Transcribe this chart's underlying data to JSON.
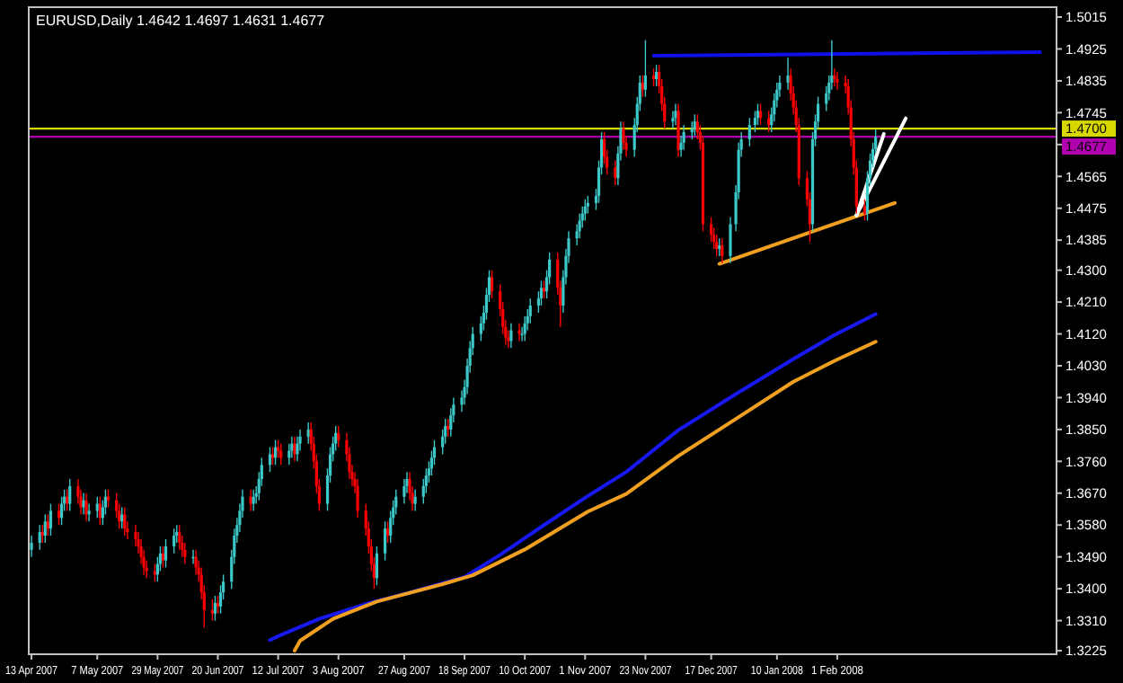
{
  "chart_data": {
    "type": "candlestick",
    "title": "EURUSD,Daily  1.4642 1.4697 1.4631 1.4677",
    "xlim": [
      "2007-04-12",
      "2008-04-21"
    ],
    "ylim": [
      1.3215,
      1.5043
    ],
    "xticks": [
      {
        "value": "2007-04-13",
        "label": "13 Apr 2007"
      },
      {
        "value": "2007-05-07",
        "label": "7 May 2007"
      },
      {
        "value": "2007-05-29",
        "label": "29 May 2007"
      },
      {
        "value": "2007-06-20",
        "label": "20 Jun 2007"
      },
      {
        "value": "2007-07-12",
        "label": "12 Jul 2007"
      },
      {
        "value": "2007-08-03",
        "label": "3 Aug 2007"
      },
      {
        "value": "2007-08-27",
        "label": "27 Aug 2007"
      },
      {
        "value": "2007-09-18",
        "label": "18 Sep 2007"
      },
      {
        "value": "2007-10-10",
        "label": "10 Oct 2007"
      },
      {
        "value": "2007-11-01",
        "label": "1 Nov 2007"
      },
      {
        "value": "2007-11-23",
        "label": "23 Nov 2007"
      },
      {
        "value": "2007-12-17",
        "label": "17 Dec 2007"
      },
      {
        "value": "2008-01-10",
        "label": "10 Jan 2008"
      },
      {
        "value": "2008-02-01",
        "label": "1 Feb 2008"
      }
    ],
    "yticks": [
      1.5015,
      1.4925,
      1.4835,
      1.4745,
      {
        "value": 1.4655,
        "label": null
      },
      1.4565,
      1.4475,
      1.4385,
      {
        "value": 1.43,
        "label": "1.4300"
      },
      {
        "value": 1.421,
        "label": "1.4210"
      },
      {
        "value": 1.412,
        "label": "1.4120"
      },
      {
        "value": 1.403,
        "label": "1.4030"
      },
      {
        "value": 1.394,
        "label": "1.3940"
      },
      {
        "value": 1.385,
        "label": "1.3850"
      },
      {
        "value": 1.376,
        "label": "1.3760"
      },
      {
        "value": 1.367,
        "label": "1.3670"
      },
      {
        "value": 1.358,
        "label": "1.3580"
      },
      {
        "value": 1.349,
        "label": "1.3490"
      },
      {
        "value": 1.34,
        "label": "1.3400"
      },
      {
        "value": 1.331,
        "label": "1.3310"
      },
      1.3225
    ],
    "ref_lines": [
      {
        "axis": "y",
        "value": 1.47,
        "label": "1.4700",
        "color": "#d8d800"
      },
      {
        "axis": "y",
        "value": 1.4677,
        "label": "1.4677",
        "color": "#b000b0"
      }
    ],
    "x": [
      "2007-04-13",
      "2007-04-16",
      "2007-04-17",
      "2007-04-18",
      "2007-04-19",
      "2007-04-20",
      "2007-04-23",
      "2007-04-24",
      "2007-04-25",
      "2007-04-26",
      "2007-04-27",
      "2007-04-30",
      "2007-05-01",
      "2007-05-02",
      "2007-05-03",
      "2007-05-04",
      "2007-05-07",
      "2007-05-08",
      "2007-05-09",
      "2007-05-10",
      "2007-05-11",
      "2007-05-14",
      "2007-05-15",
      "2007-05-16",
      "2007-05-17",
      "2007-05-18",
      "2007-05-21",
      "2007-05-22",
      "2007-05-23",
      "2007-05-24",
      "2007-05-25",
      "2007-05-28",
      "2007-05-29",
      "2007-05-30",
      "2007-05-31",
      "2007-06-01",
      "2007-06-04",
      "2007-06-05",
      "2007-06-06",
      "2007-06-07",
      "2007-06-08",
      "2007-06-11",
      "2007-06-12",
      "2007-06-13",
      "2007-06-14",
      "2007-06-15",
      "2007-06-18",
      "2007-06-19",
      "2007-06-20",
      "2007-06-21",
      "2007-06-22",
      "2007-06-25",
      "2007-06-26",
      "2007-06-27",
      "2007-06-28",
      "2007-06-29",
      "2007-07-02",
      "2007-07-03",
      "2007-07-04",
      "2007-07-05",
      "2007-07-06",
      "2007-07-09",
      "2007-07-10",
      "2007-07-11",
      "2007-07-12",
      "2007-07-13",
      "2007-07-16",
      "2007-07-17",
      "2007-07-18",
      "2007-07-19",
      "2007-07-20",
      "2007-07-23",
      "2007-07-24",
      "2007-07-25",
      "2007-07-26",
      "2007-07-27",
      "2007-07-30",
      "2007-07-31",
      "2007-08-01",
      "2007-08-02",
      "2007-08-03",
      "2007-08-06",
      "2007-08-07",
      "2007-08-08",
      "2007-08-09",
      "2007-08-10",
      "2007-08-13",
      "2007-08-14",
      "2007-08-15",
      "2007-08-16",
      "2007-08-17",
      "2007-08-20",
      "2007-08-21",
      "2007-08-22",
      "2007-08-23",
      "2007-08-24",
      "2007-08-27",
      "2007-08-28",
      "2007-08-29",
      "2007-08-30",
      "2007-08-31",
      "2007-09-03",
      "2007-09-04",
      "2007-09-05",
      "2007-09-06",
      "2007-09-07",
      "2007-09-10",
      "2007-09-11",
      "2007-09-12",
      "2007-09-13",
      "2007-09-14",
      "2007-09-17",
      "2007-09-18",
      "2007-09-19",
      "2007-09-20",
      "2007-09-21",
      "2007-09-24",
      "2007-09-25",
      "2007-09-26",
      "2007-09-27",
      "2007-09-28",
      "2007-10-01",
      "2007-10-02",
      "2007-10-03",
      "2007-10-04",
      "2007-10-05",
      "2007-10-08",
      "2007-10-09",
      "2007-10-10",
      "2007-10-11",
      "2007-10-12",
      "2007-10-15",
      "2007-10-16",
      "2007-10-17",
      "2007-10-18",
      "2007-10-19",
      "2007-10-22",
      "2007-10-23",
      "2007-10-24",
      "2007-10-25",
      "2007-10-26",
      "2007-10-29",
      "2007-10-30",
      "2007-10-31",
      "2007-11-01",
      "2007-11-02",
      "2007-11-05",
      "2007-11-06",
      "2007-11-07",
      "2007-11-08",
      "2007-11-09",
      "2007-11-12",
      "2007-11-13",
      "2007-11-14",
      "2007-11-15",
      "2007-11-16",
      "2007-11-19",
      "2007-11-20",
      "2007-11-21",
      "2007-11-22",
      "2007-11-23",
      "2007-11-26",
      "2007-11-27",
      "2007-11-28",
      "2007-11-29",
      "2007-11-30",
      "2007-12-03",
      "2007-12-04",
      "2007-12-05",
      "2007-12-06",
      "2007-12-07",
      "2007-12-10",
      "2007-12-11",
      "2007-12-12",
      "2007-12-13",
      "2007-12-14",
      "2007-12-17",
      "2007-12-18",
      "2007-12-19",
      "2007-12-20",
      "2007-12-21",
      "2007-12-24",
      "2007-12-26",
      "2007-12-27",
      "2007-12-28",
      "2007-12-31",
      "2008-01-02",
      "2008-01-03",
      "2008-01-04",
      "2008-01-07",
      "2008-01-08",
      "2008-01-09",
      "2008-01-10",
      "2008-01-11",
      "2008-01-14",
      "2008-01-15",
      "2008-01-16",
      "2008-01-17",
      "2008-01-18",
      "2008-01-21",
      "2008-01-22",
      "2008-01-23",
      "2008-01-24",
      "2008-01-25",
      "2008-01-28",
      "2008-01-29",
      "2008-01-30",
      "2008-01-31",
      "2008-02-01",
      "2008-02-04",
      "2008-02-05",
      "2008-02-06",
      "2008-02-07",
      "2008-02-08",
      "2008-02-11",
      "2008-02-12",
      "2008-02-13",
      "2008-02-14",
      "2008-02-15"
    ],
    "ohlc": [
      [
        1.351,
        1.355,
        1.349,
        1.353
      ],
      [
        1.353,
        1.358,
        1.351,
        1.356
      ],
      [
        1.356,
        1.358,
        1.353,
        1.355
      ],
      [
        1.355,
        1.361,
        1.353,
        1.359
      ],
      [
        1.359,
        1.361,
        1.355,
        1.357
      ],
      [
        1.357,
        1.364,
        1.355,
        1.362
      ],
      [
        1.362,
        1.364,
        1.358,
        1.36
      ],
      [
        1.36,
        1.366,
        1.358,
        1.364
      ],
      [
        1.364,
        1.368,
        1.362,
        1.366
      ],
      [
        1.366,
        1.368,
        1.362,
        1.364
      ],
      [
        1.364,
        1.371,
        1.362,
        1.369
      ],
      [
        1.369,
        1.371,
        1.364,
        1.366
      ],
      [
        1.366,
        1.368,
        1.361,
        1.363
      ],
      [
        1.363,
        1.367,
        1.361,
        1.365
      ],
      [
        1.365,
        1.367,
        1.359,
        1.361
      ],
      [
        1.361,
        1.364,
        1.359,
        1.362
      ],
      [
        1.362,
        1.366,
        1.36,
        1.364
      ],
      [
        1.364,
        1.366,
        1.358,
        1.36
      ],
      [
        1.36,
        1.365,
        1.358,
        1.363
      ],
      [
        1.363,
        1.368,
        1.361,
        1.366
      ],
      [
        1.366,
        1.368,
        1.363,
        1.365
      ],
      [
        1.365,
        1.367,
        1.36,
        1.362
      ],
      [
        1.362,
        1.364,
        1.357,
        1.359
      ],
      [
        1.359,
        1.363,
        1.357,
        1.361
      ],
      [
        1.361,
        1.363,
        1.355,
        1.357
      ],
      [
        1.357,
        1.359,
        1.354,
        1.356
      ],
      [
        1.356,
        1.358,
        1.352,
        1.354
      ],
      [
        1.354,
        1.356,
        1.35,
        1.352
      ],
      [
        1.352,
        1.354,
        1.347,
        1.349
      ],
      [
        1.349,
        1.351,
        1.344,
        1.346
      ],
      [
        1.346,
        1.348,
        1.343,
        1.345
      ],
      [
        1.345,
        1.347,
        1.342,
        1.344
      ],
      [
        1.344,
        1.349,
        1.342,
        1.347
      ],
      [
        1.347,
        1.352,
        1.345,
        1.35
      ],
      [
        1.35,
        1.352,
        1.346,
        1.348
      ],
      [
        1.348,
        1.354,
        1.346,
        1.352
      ],
      [
        1.352,
        1.357,
        1.35,
        1.355
      ],
      [
        1.355,
        1.358,
        1.353,
        1.356
      ],
      [
        1.356,
        1.358,
        1.351,
        1.353
      ],
      [
        1.353,
        1.355,
        1.349,
        1.351
      ],
      [
        1.351,
        1.353,
        1.347,
        1.349
      ],
      [
        1.349,
        1.351,
        1.347,
        1.349
      ],
      [
        1.349,
        1.351,
        1.344,
        1.346
      ],
      [
        1.346,
        1.348,
        1.342,
        1.344
      ],
      [
        1.344,
        1.346,
        1.337,
        1.339
      ],
      [
        1.339,
        1.341,
        1.329,
        1.334
      ],
      [
        1.334,
        1.337,
        1.331,
        1.333
      ],
      [
        1.333,
        1.338,
        1.331,
        1.336
      ],
      [
        1.336,
        1.338,
        1.333,
        1.335
      ],
      [
        1.335,
        1.341,
        1.333,
        1.339
      ],
      [
        1.339,
        1.344,
        1.337,
        1.342
      ],
      [
        1.342,
        1.351,
        1.34,
        1.349
      ],
      [
        1.349,
        1.357,
        1.347,
        1.355
      ],
      [
        1.355,
        1.36,
        1.353,
        1.358
      ],
      [
        1.358,
        1.364,
        1.356,
        1.362
      ],
      [
        1.362,
        1.368,
        1.36,
        1.366
      ],
      [
        1.366,
        1.368,
        1.362,
        1.364
      ],
      [
        1.364,
        1.368,
        1.362,
        1.366
      ],
      [
        1.366,
        1.369,
        1.364,
        1.367
      ],
      [
        1.367,
        1.373,
        1.365,
        1.371
      ],
      [
        1.371,
        1.377,
        1.369,
        1.375
      ],
      [
        1.375,
        1.38,
        1.373,
        1.378
      ],
      [
        1.378,
        1.38,
        1.375,
        1.377
      ],
      [
        1.377,
        1.382,
        1.375,
        1.38
      ],
      [
        1.38,
        1.382,
        1.377,
        1.379
      ],
      [
        1.379,
        1.381,
        1.375,
        1.377
      ],
      [
        1.377,
        1.381,
        1.375,
        1.379
      ],
      [
        1.379,
        1.383,
        1.377,
        1.381
      ],
      [
        1.381,
        1.383,
        1.376,
        1.378
      ],
      [
        1.378,
        1.383,
        1.376,
        1.381
      ],
      [
        1.381,
        1.385,
        1.379,
        1.383
      ],
      [
        1.383,
        1.387,
        1.381,
        1.385
      ],
      [
        1.385,
        1.387,
        1.379,
        1.381
      ],
      [
        1.381,
        1.383,
        1.374,
        1.376
      ],
      [
        1.376,
        1.378,
        1.367,
        1.369
      ],
      [
        1.369,
        1.371,
        1.362,
        1.364
      ],
      [
        1.364,
        1.374,
        1.362,
        1.372
      ],
      [
        1.372,
        1.38,
        1.37,
        1.378
      ],
      [
        1.378,
        1.383,
        1.376,
        1.381
      ],
      [
        1.381,
        1.386,
        1.379,
        1.384
      ],
      [
        1.384,
        1.386,
        1.38,
        1.382
      ],
      [
        1.382,
        1.384,
        1.376,
        1.378
      ],
      [
        1.378,
        1.38,
        1.371,
        1.373
      ],
      [
        1.373,
        1.375,
        1.369,
        1.371
      ],
      [
        1.371,
        1.373,
        1.367,
        1.369
      ],
      [
        1.369,
        1.371,
        1.36,
        1.362
      ],
      [
        1.362,
        1.364,
        1.355,
        1.357
      ],
      [
        1.357,
        1.359,
        1.35,
        1.352
      ],
      [
        1.352,
        1.354,
        1.345,
        1.347
      ],
      [
        1.347,
        1.349,
        1.34,
        1.343
      ],
      [
        1.343,
        1.352,
        1.341,
        1.35
      ],
      [
        1.35,
        1.359,
        1.348,
        1.357
      ],
      [
        1.357,
        1.359,
        1.353,
        1.355
      ],
      [
        1.355,
        1.362,
        1.353,
        1.36
      ],
      [
        1.36,
        1.365,
        1.358,
        1.363
      ],
      [
        1.363,
        1.368,
        1.361,
        1.366
      ],
      [
        1.366,
        1.371,
        1.364,
        1.369
      ],
      [
        1.369,
        1.373,
        1.367,
        1.371
      ],
      [
        1.371,
        1.373,
        1.365,
        1.367
      ],
      [
        1.367,
        1.369,
        1.362,
        1.364
      ],
      [
        1.364,
        1.368,
        1.362,
        1.366
      ],
      [
        1.366,
        1.371,
        1.364,
        1.369
      ],
      [
        1.369,
        1.374,
        1.367,
        1.372
      ],
      [
        1.372,
        1.376,
        1.37,
        1.374
      ],
      [
        1.374,
        1.379,
        1.372,
        1.377
      ],
      [
        1.377,
        1.382,
        1.375,
        1.38
      ],
      [
        1.38,
        1.385,
        1.378,
        1.383
      ],
      [
        1.383,
        1.388,
        1.381,
        1.386
      ],
      [
        1.386,
        1.388,
        1.383,
        1.385
      ],
      [
        1.385,
        1.391,
        1.383,
        1.389
      ],
      [
        1.389,
        1.394,
        1.387,
        1.392
      ],
      [
        1.392,
        1.396,
        1.39,
        1.394
      ],
      [
        1.394,
        1.399,
        1.392,
        1.397
      ],
      [
        1.397,
        1.405,
        1.395,
        1.403
      ],
      [
        1.403,
        1.41,
        1.401,
        1.408
      ],
      [
        1.408,
        1.414,
        1.406,
        1.412
      ],
      [
        1.412,
        1.417,
        1.41,
        1.415
      ],
      [
        1.415,
        1.42,
        1.413,
        1.418
      ],
      [
        1.418,
        1.425,
        1.416,
        1.423
      ],
      [
        1.423,
        1.43,
        1.421,
        1.428
      ],
      [
        1.428,
        1.43,
        1.422,
        1.424
      ],
      [
        1.424,
        1.426,
        1.417,
        1.419
      ],
      [
        1.419,
        1.421,
        1.412,
        1.414
      ],
      [
        1.414,
        1.416,
        1.409,
        1.411
      ],
      [
        1.411,
        1.413,
        1.408,
        1.41
      ],
      [
        1.41,
        1.415,
        1.408,
        1.413
      ],
      [
        1.413,
        1.415,
        1.41,
        1.412
      ],
      [
        1.412,
        1.414,
        1.41,
        1.412
      ],
      [
        1.412,
        1.417,
        1.41,
        1.415
      ],
      [
        1.415,
        1.419,
        1.413,
        1.417
      ],
      [
        1.417,
        1.422,
        1.415,
        1.42
      ],
      [
        1.42,
        1.424,
        1.418,
        1.422
      ],
      [
        1.422,
        1.427,
        1.42,
        1.425
      ],
      [
        1.425,
        1.427,
        1.422,
        1.424
      ],
      [
        1.424,
        1.43,
        1.422,
        1.428
      ],
      [
        1.428,
        1.435,
        1.426,
        1.433
      ],
      [
        1.433,
        1.435,
        1.423,
        1.425
      ],
      [
        1.425,
        1.427,
        1.414,
        1.42
      ],
      [
        1.42,
        1.43,
        1.418,
        1.428
      ],
      [
        1.428,
        1.436,
        1.426,
        1.434
      ],
      [
        1.434,
        1.441,
        1.432,
        1.439
      ],
      [
        1.439,
        1.443,
        1.437,
        1.441
      ],
      [
        1.441,
        1.446,
        1.439,
        1.444
      ],
      [
        1.444,
        1.448,
        1.442,
        1.446
      ],
      [
        1.446,
        1.45,
        1.444,
        1.448
      ],
      [
        1.448,
        1.451,
        1.446,
        1.449
      ],
      [
        1.449,
        1.453,
        1.447,
        1.451
      ],
      [
        1.451,
        1.461,
        1.449,
        1.459
      ],
      [
        1.459,
        1.469,
        1.457,
        1.467
      ],
      [
        1.467,
        1.469,
        1.46,
        1.462
      ],
      [
        1.462,
        1.464,
        1.457,
        1.459
      ],
      [
        1.459,
        1.461,
        1.454,
        1.456
      ],
      [
        1.456,
        1.465,
        1.454,
        1.463
      ],
      [
        1.463,
        1.472,
        1.461,
        1.47
      ],
      [
        1.47,
        1.472,
        1.464,
        1.466
      ],
      [
        1.466,
        1.468,
        1.462,
        1.464
      ],
      [
        1.464,
        1.473,
        1.462,
        1.471
      ],
      [
        1.471,
        1.479,
        1.469,
        1.477
      ],
      [
        1.477,
        1.485,
        1.475,
        1.483
      ],
      [
        1.483,
        1.485,
        1.479,
        1.481
      ],
      [
        1.481,
        1.495,
        1.479,
        1.485
      ],
      [
        1.485,
        1.487,
        1.482,
        1.484
      ],
      [
        1.484,
        1.488,
        1.482,
        1.486
      ],
      [
        1.486,
        1.488,
        1.48,
        1.482
      ],
      [
        1.482,
        1.484,
        1.475,
        1.477
      ],
      [
        1.477,
        1.479,
        1.47,
        1.472
      ],
      [
        1.472,
        1.475,
        1.47,
        1.473
      ],
      [
        1.473,
        1.477,
        1.471,
        1.475
      ],
      [
        1.475,
        1.477,
        1.462,
        1.464
      ],
      [
        1.464,
        1.468,
        1.462,
        1.466
      ],
      [
        1.466,
        1.471,
        1.464,
        1.469
      ],
      [
        1.469,
        1.472,
        1.467,
        1.47
      ],
      [
        1.47,
        1.474,
        1.468,
        1.472
      ],
      [
        1.472,
        1.474,
        1.467,
        1.469
      ],
      [
        1.469,
        1.471,
        1.464,
        1.466
      ],
      [
        1.466,
        1.468,
        1.441,
        1.443
      ],
      [
        1.443,
        1.445,
        1.438,
        1.44
      ],
      [
        1.44,
        1.442,
        1.436,
        1.438
      ],
      [
        1.438,
        1.44,
        1.434,
        1.436
      ],
      [
        1.436,
        1.439,
        1.434,
        1.437
      ],
      [
        1.437,
        1.439,
        1.432,
        1.434
      ],
      [
        1.434,
        1.445,
        1.432,
        1.443
      ],
      [
        1.443,
        1.454,
        1.441,
        1.452
      ],
      [
        1.452,
        1.466,
        1.45,
        1.464
      ],
      [
        1.464,
        1.469,
        1.462,
        1.467
      ],
      [
        1.467,
        1.473,
        1.465,
        1.471
      ],
      [
        1.471,
        1.475,
        1.469,
        1.473
      ],
      [
        1.473,
        1.477,
        1.471,
        1.475
      ],
      [
        1.475,
        1.477,
        1.471,
        1.473
      ],
      [
        1.473,
        1.475,
        1.469,
        1.471
      ],
      [
        1.471,
        1.476,
        1.469,
        1.474
      ],
      [
        1.474,
        1.48,
        1.472,
        1.478
      ],
      [
        1.478,
        1.483,
        1.476,
        1.481
      ],
      [
        1.481,
        1.485,
        1.479,
        1.483
      ],
      [
        1.483,
        1.49,
        1.481,
        1.485
      ],
      [
        1.485,
        1.487,
        1.478,
        1.48
      ],
      [
        1.48,
        1.482,
        1.474,
        1.476
      ],
      [
        1.476,
        1.478,
        1.469,
        1.471
      ],
      [
        1.471,
        1.473,
        1.454,
        1.456
      ],
      [
        1.456,
        1.458,
        1.448,
        1.45
      ],
      [
        1.45,
        1.452,
        1.438,
        1.443
      ],
      [
        1.443,
        1.469,
        1.441,
        1.467
      ],
      [
        1.467,
        1.474,
        1.465,
        1.472
      ],
      [
        1.472,
        1.479,
        1.47,
        1.477
      ],
      [
        1.477,
        1.482,
        1.475,
        1.48
      ],
      [
        1.48,
        1.485,
        1.478,
        1.483
      ],
      [
        1.483,
        1.495,
        1.481,
        1.485
      ],
      [
        1.485,
        1.487,
        1.482,
        1.484
      ],
      [
        1.484,
        1.486,
        1.481,
        1.483
      ],
      [
        1.483,
        1.485,
        1.48,
        1.482
      ],
      [
        1.482,
        1.484,
        1.474,
        1.476
      ],
      [
        1.476,
        1.478,
        1.465,
        1.467
      ],
      [
        1.467,
        1.469,
        1.457,
        1.459
      ],
      [
        1.459,
        1.461,
        1.446,
        1.448
      ],
      [
        1.448,
        1.45,
        1.444,
        1.446
      ],
      [
        1.446,
        1.458,
        1.444,
        1.456
      ],
      [
        1.456,
        1.463,
        1.454,
        1.461
      ],
      [
        1.461,
        1.466,
        1.459,
        1.4642
      ],
      [
        1.4642,
        1.4697,
        1.4631,
        1.4677
      ]
    ],
    "series": [
      {
        "type": "line",
        "color": "#1818f0",
        "x": [
          "2007-07-09",
          "2007-07-12",
          "2007-07-27",
          "2007-08-14",
          "2007-08-29",
          "2007-09-18",
          "2007-10-01",
          "2007-10-17",
          "2007-11-02",
          "2007-11-16",
          "2007-12-05",
          "2007-12-26",
          "2008-01-16",
          "2008-01-31",
          "2008-02-15"
        ],
        "values": [
          1.3255,
          1.3266,
          1.3315,
          1.3359,
          1.3389,
          1.3433,
          1.3496,
          1.358,
          1.3662,
          1.373,
          1.3848,
          1.395,
          1.4049,
          1.4117,
          1.4176
        ]
      },
      {
        "type": "line",
        "color": "#f0a020",
        "x": [
          "2007-07-18",
          "2007-07-20",
          "2007-08-01",
          "2007-08-17",
          "2007-09-10",
          "2007-09-21",
          "2007-10-10",
          "2007-11-02",
          "2007-11-16",
          "2007-12-05",
          "2007-12-26",
          "2008-01-16",
          "2008-01-31",
          "2008-02-15"
        ],
        "values": [
          1.3225,
          1.3253,
          1.3315,
          1.3364,
          1.3413,
          1.3438,
          1.3511,
          1.3618,
          1.3668,
          1.3775,
          1.388,
          1.3985,
          1.4044,
          1.4098
        ]
      },
      {
        "type": "line",
        "color": "#1010e8",
        "x": [
          "2007-11-26",
          "2008-04-15"
        ],
        "values": [
          1.4906,
          1.4916
        ]
      },
      {
        "type": "line",
        "color": "#f0a020",
        "x": [
          "2007-12-20",
          "2008-02-22"
        ],
        "values": [
          1.4318,
          1.449
        ]
      },
      {
        "type": "line",
        "color": "#ffffff",
        "x": [
          "2008-02-08",
          "2008-02-26"
        ],
        "values": [
          1.4455,
          1.4729
        ]
      },
      {
        "type": "line",
        "color": "#ffffff",
        "x": [
          "2008-02-08",
          "2008-02-18"
        ],
        "values": [
          1.4455,
          1.4685
        ]
      }
    ]
  }
}
